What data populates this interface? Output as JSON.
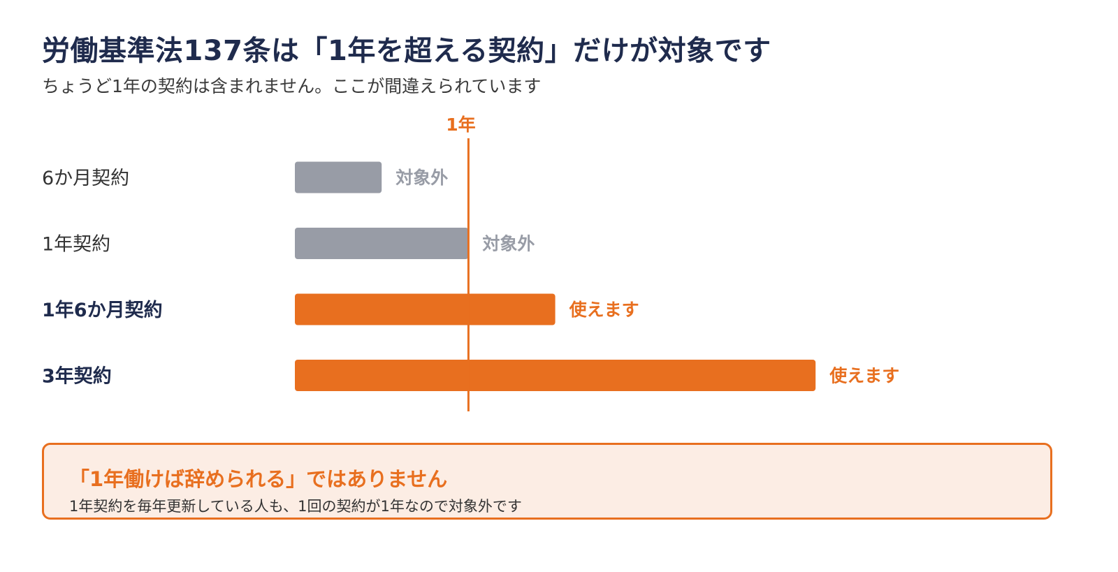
{
  "title": "労働基準法137条は「1年を超える契約」だけが対象です",
  "subtitle": "ちょうど1年の契約は含まれません。ここが間違えられています",
  "colors": {
    "navy": "#1f2b4d",
    "gray_bar": "#989ca6",
    "orange": "#e86f1f",
    "callout_bg": "#fcede4"
  },
  "chart_data": {
    "type": "bar",
    "orientation": "horizontal",
    "threshold": {
      "value": 12,
      "label": "1年"
    },
    "categories": [
      "6か月契約",
      "1年契約",
      "1年6か月契約",
      "3年契約"
    ],
    "values": [
      6,
      12,
      18,
      36
    ],
    "unit": "months",
    "annotations": [
      "対象外",
      "対象外",
      "使えます",
      "使えます"
    ],
    "highlighted": [
      false,
      false,
      true,
      true
    ]
  },
  "callout": {
    "title": "「1年働けば辞められる」ではありません",
    "body": "1年契約を毎年更新している人も、1回の契約が1年なので対象外です"
  }
}
